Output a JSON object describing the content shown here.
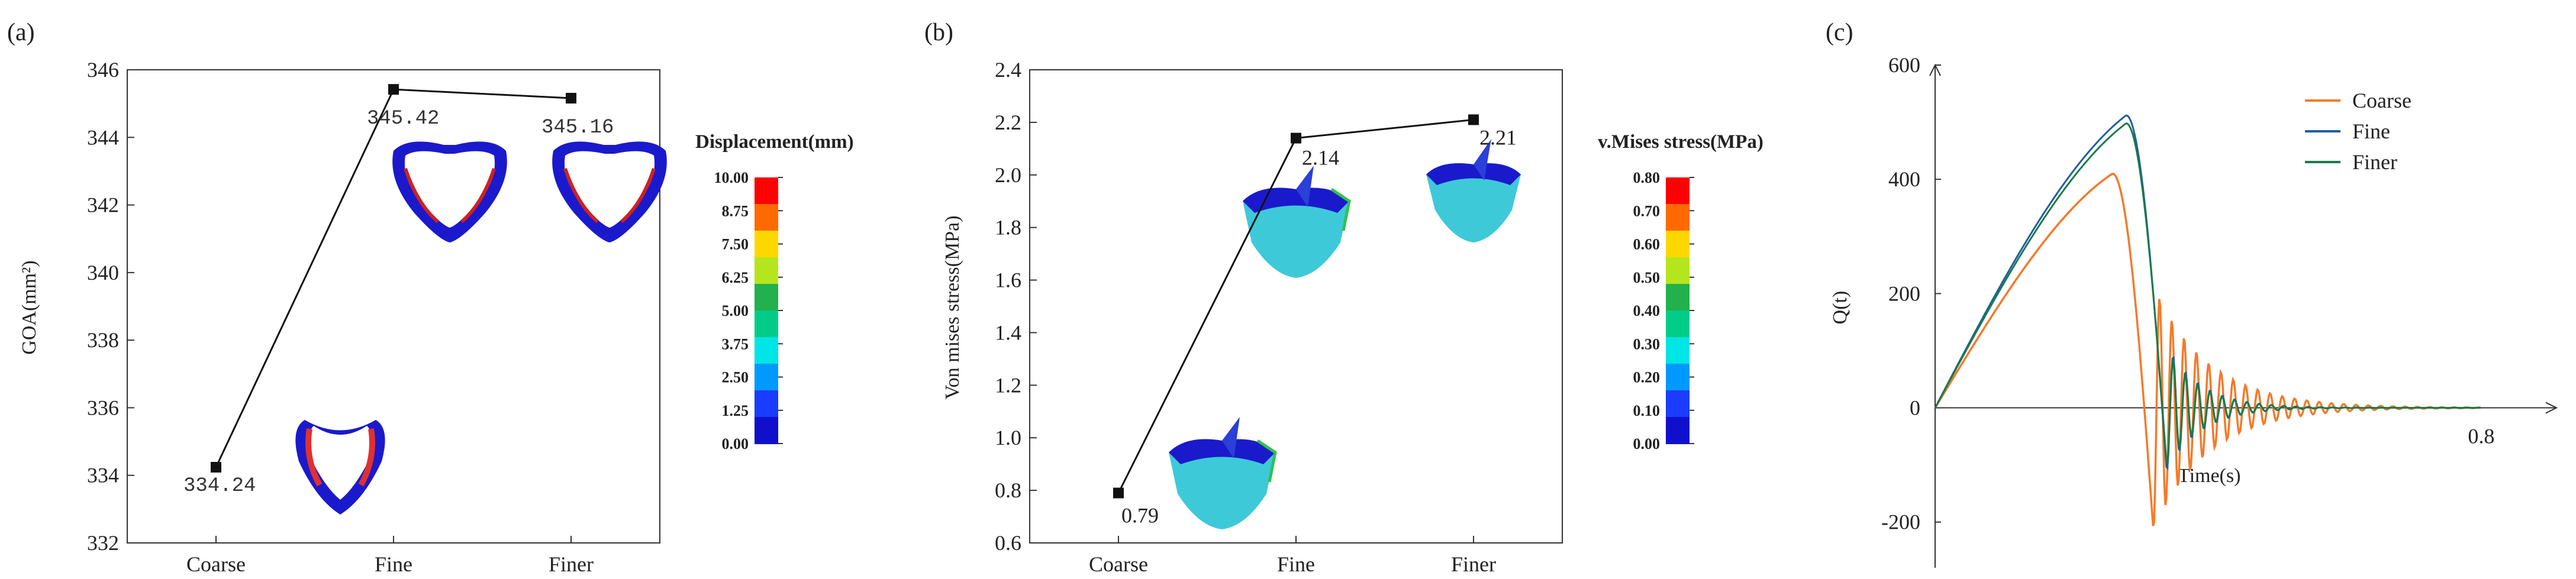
{
  "chart_data": [
    {
      "type": "line",
      "panel_label": "(a)",
      "categories": [
        "Coarse",
        "Fine",
        "Finer"
      ],
      "values": [
        334.24,
        345.42,
        345.16
      ],
      "data_labels": [
        "334.24",
        "345.42",
        "345.16"
      ],
      "ylabel": "GOA(mm²)",
      "ylim": [
        332,
        346
      ],
      "yticks": [
        "332",
        "334",
        "336",
        "338",
        "340",
        "342",
        "344",
        "346"
      ],
      "colorbar": {
        "title": "Displacement(mm)",
        "ticks": [
          "10.00",
          "8.75",
          "7.50",
          "6.25",
          "5.00",
          "3.75",
          "2.50",
          "1.25",
          "0.00"
        ],
        "colors": [
          "#ff0000",
          "#ff6a00",
          "#ffd700",
          "#b5e61d",
          "#22b14c",
          "#00cc88",
          "#00e5e5",
          "#0099ff",
          "#1a3cff",
          "#1010cc"
        ]
      }
    },
    {
      "type": "line",
      "panel_label": "(b)",
      "categories": [
        "Coarse",
        "Fine",
        "Finer"
      ],
      "values": [
        0.79,
        2.14,
        2.21
      ],
      "data_labels": [
        "0.79",
        "2.14",
        "2.21"
      ],
      "ylabel": "Von mises stress(MPa)",
      "ylim": [
        0.6,
        2.4
      ],
      "yticks": [
        "0.6",
        "0.8",
        "1.0",
        "1.2",
        "1.4",
        "1.6",
        "1.8",
        "2.0",
        "2.2",
        "2.4"
      ],
      "colorbar": {
        "title": "v.Mises stress(MPa)",
        "ticks": [
          "0.80",
          "0.70",
          "0.60",
          "0.50",
          "0.40",
          "0.30",
          "0.20",
          "0.10",
          "0.00"
        ],
        "colors": [
          "#ff0000",
          "#ff6a00",
          "#ffd700",
          "#b5e61d",
          "#22b14c",
          "#00cc88",
          "#00e5e5",
          "#0099ff",
          "#1a3cff",
          "#1010cc"
        ]
      }
    },
    {
      "type": "line",
      "panel_label": "(c)",
      "xlabel": "Time(s)",
      "ylabel": "Q(t)",
      "xlim": [
        0,
        0.85
      ],
      "ylim": [
        -280,
        600
      ],
      "yticks": [
        "600",
        "400",
        "200",
        "0",
        "-200"
      ],
      "xtick_label": "0.8",
      "legend_position": "top-right",
      "series": [
        {
          "name": "Coarse",
          "color": "#f47a2a",
          "peak": 410,
          "peak_t": 0.26,
          "trough": -215,
          "decay": 0.08
        },
        {
          "name": "Fine",
          "color": "#1f5f9f",
          "peak": 512,
          "peak_t": 0.28,
          "trough": -120,
          "decay": 0.05
        },
        {
          "name": "Finer",
          "color": "#1a7a4a",
          "peak": 498,
          "peak_t": 0.28,
          "trough": -110,
          "decay": 0.05
        }
      ]
    }
  ]
}
